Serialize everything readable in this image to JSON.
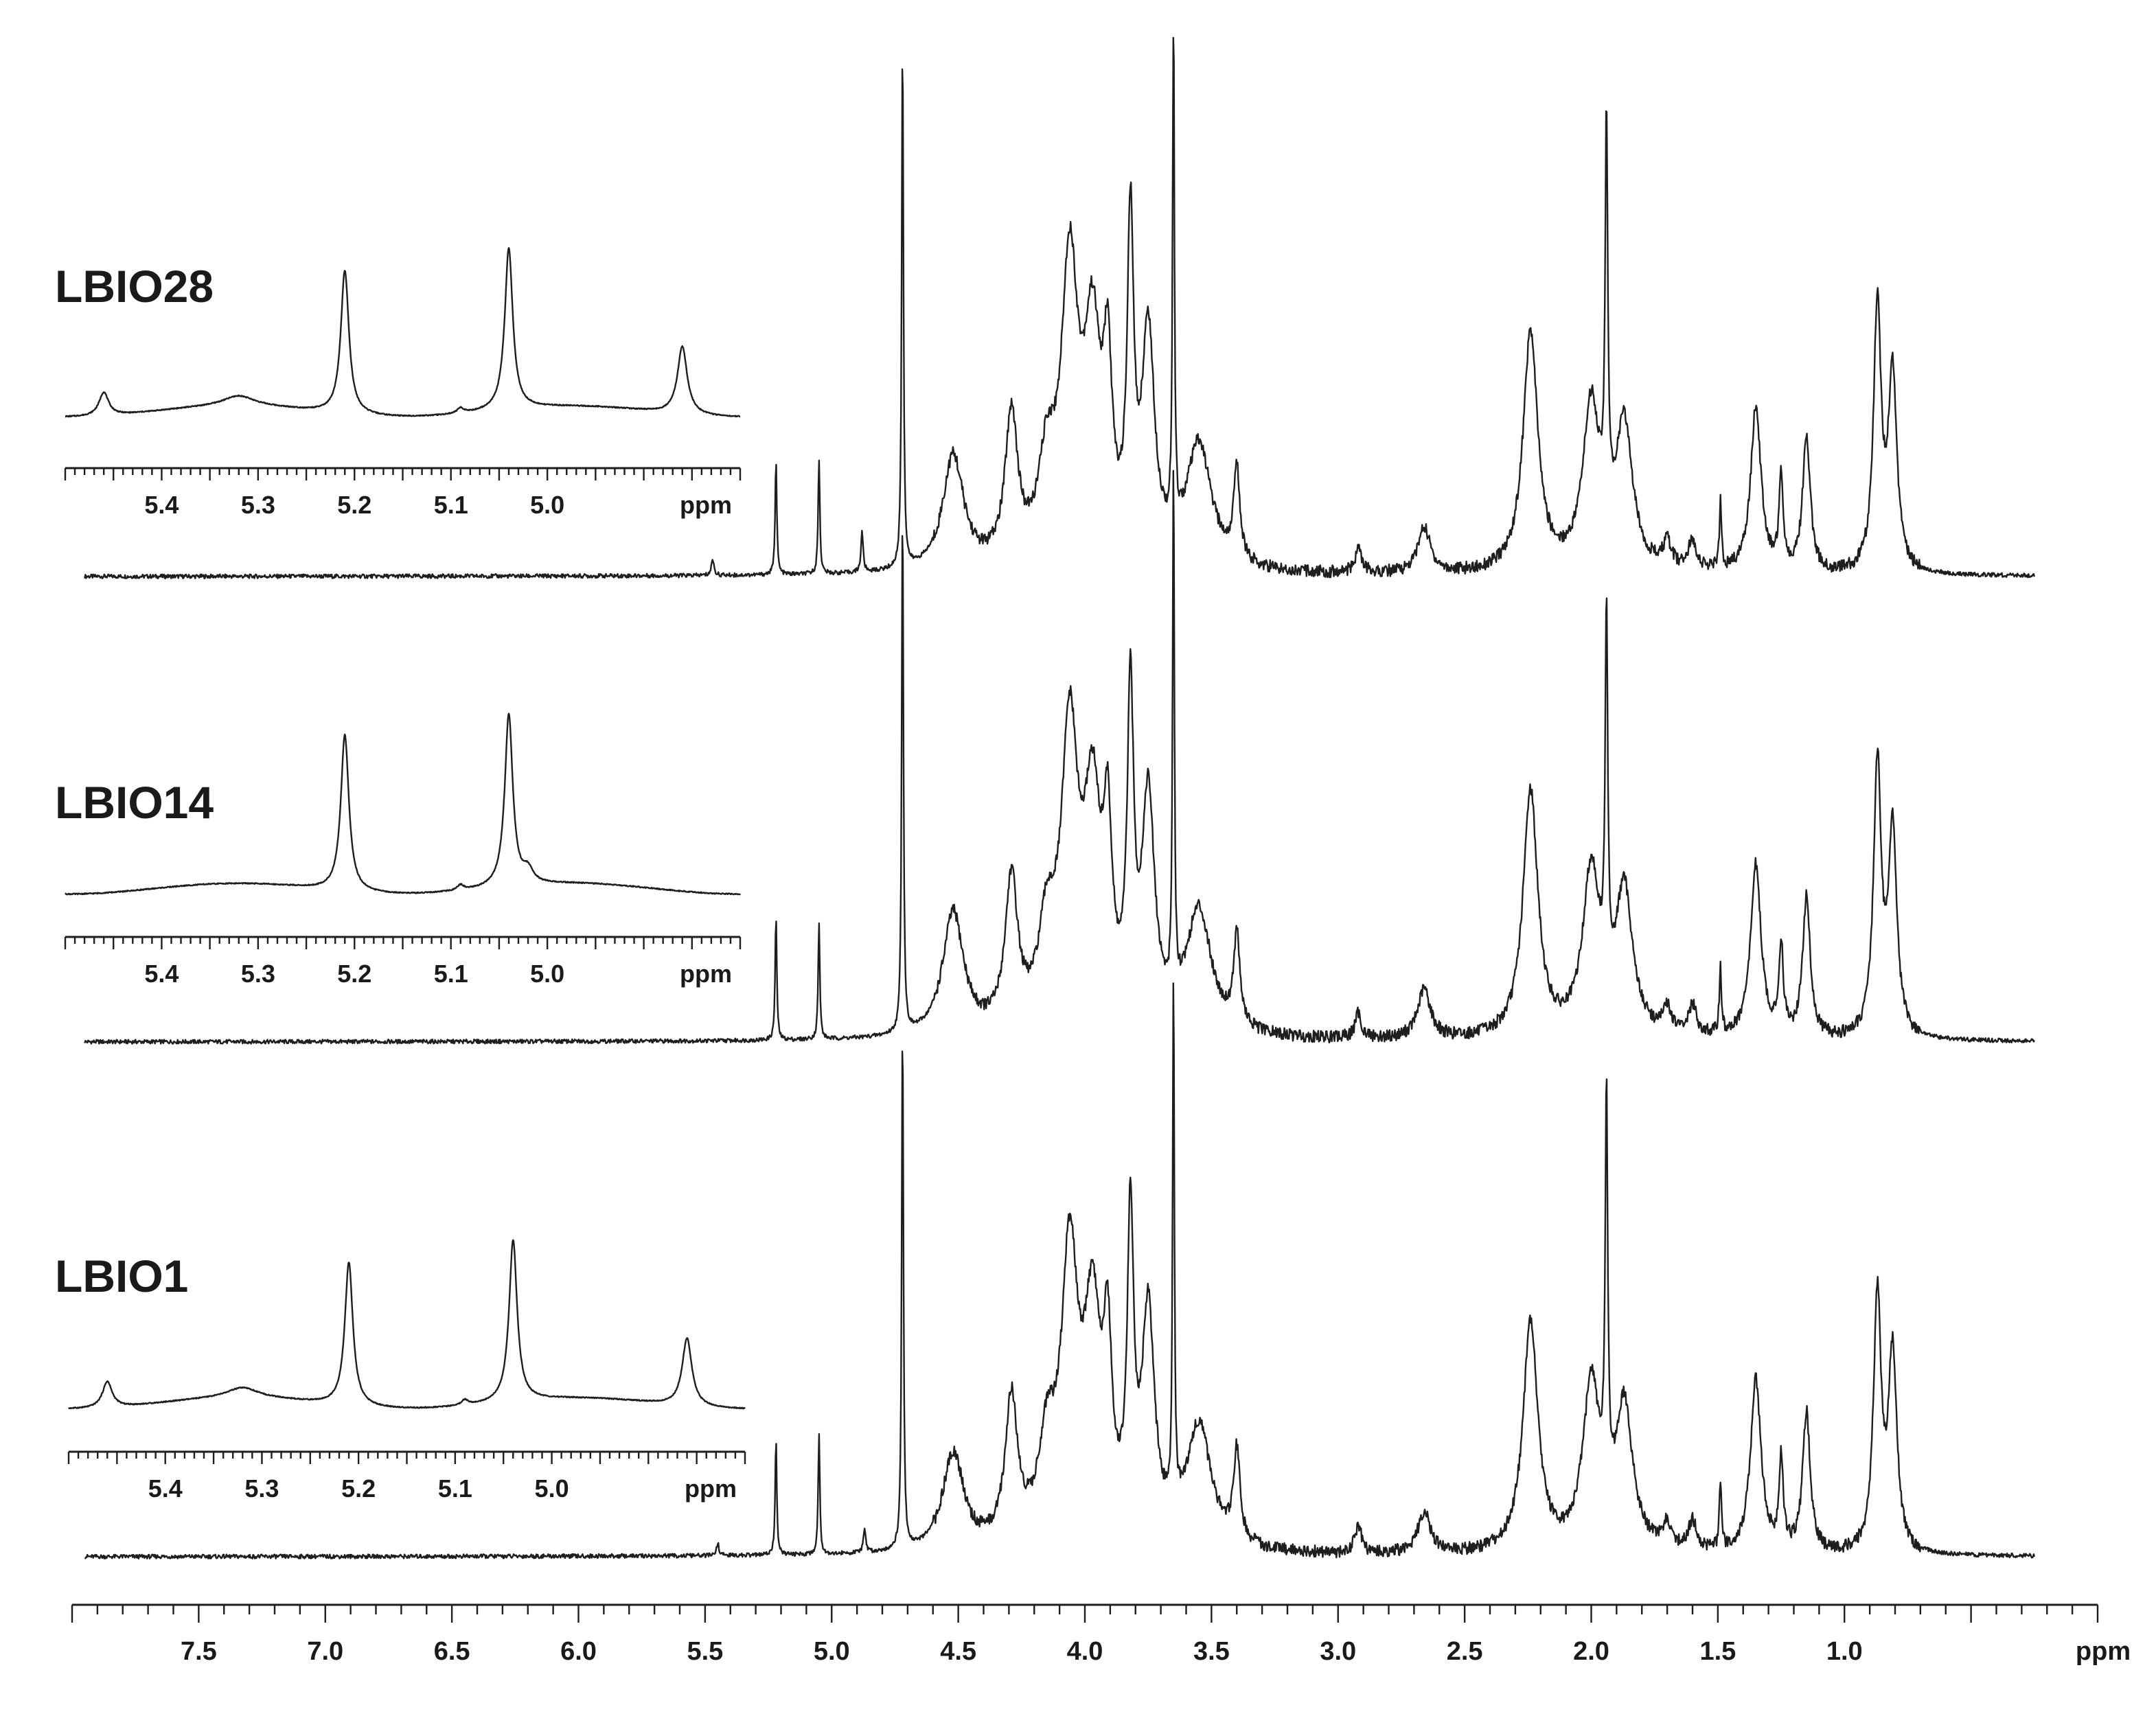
{
  "chart_data": [
    {
      "type": "line",
      "title": "",
      "xlabel": "ppm",
      "ylabel": "",
      "xlim": [
        8.0,
        0.0
      ],
      "x_reversed": true,
      "grid": false,
      "legend": "none",
      "x_ticks": [
        "7.5",
        "7.0",
        "6.5",
        "6.0",
        "5.5",
        "5.0",
        "4.5",
        "4.0",
        "3.5",
        "3.0",
        "2.5",
        "2.0",
        "1.5",
        "1.0"
      ],
      "baseline_ppm_range": [
        7.95,
        0.25
      ],
      "series": [
        {
          "name": "LBIO28",
          "peaks": [
            {
              "ppm": 5.47,
              "h": 0.04,
              "w": 0.006
            },
            {
              "ppm": 5.22,
              "h": 0.28,
              "w": 0.004
            },
            {
              "ppm": 5.05,
              "h": 0.28,
              "w": 0.004
            },
            {
              "ppm": 4.88,
              "h": 0.1,
              "w": 0.005
            },
            {
              "ppm": 4.72,
              "h": 1.3,
              "w": 0.004
            },
            {
              "ppm": 4.52,
              "h": 0.28,
              "w": 0.05
            },
            {
              "ppm": 4.29,
              "h": 0.36,
              "w": 0.03
            },
            {
              "ppm": 4.15,
              "h": 0.22,
              "w": 0.04
            },
            {
              "ppm": 4.06,
              "h": 0.7,
              "w": 0.04
            },
            {
              "ppm": 3.97,
              "h": 0.52,
              "w": 0.04
            },
            {
              "ppm": 3.91,
              "h": 0.4,
              "w": 0.02
            },
            {
              "ppm": 3.82,
              "h": 0.78,
              "w": 0.015
            },
            {
              "ppm": 3.75,
              "h": 0.55,
              "w": 0.03
            },
            {
              "ppm": 3.65,
              "h": 1.3,
              "w": 0.004
            },
            {
              "ppm": 3.55,
              "h": 0.3,
              "w": 0.06
            },
            {
              "ppm": 3.4,
              "h": 0.22,
              "w": 0.015
            },
            {
              "ppm": 2.92,
              "h": 0.06,
              "w": 0.015
            },
            {
              "ppm": 2.66,
              "h": 0.11,
              "w": 0.03
            },
            {
              "ppm": 2.24,
              "h": 0.58,
              "w": 0.035
            },
            {
              "ppm": 2.0,
              "h": 0.4,
              "w": 0.04
            },
            {
              "ppm": 1.94,
              "h": 0.95,
              "w": 0.006
            },
            {
              "ppm": 1.87,
              "h": 0.35,
              "w": 0.04
            },
            {
              "ppm": 1.7,
              "h": 0.06,
              "w": 0.02
            },
            {
              "ppm": 1.6,
              "h": 0.07,
              "w": 0.02
            },
            {
              "ppm": 1.49,
              "h": 0.16,
              "w": 0.005
            },
            {
              "ppm": 1.35,
              "h": 0.4,
              "w": 0.025
            },
            {
              "ppm": 1.25,
              "h": 0.22,
              "w": 0.01
            },
            {
              "ppm": 1.15,
              "h": 0.33,
              "w": 0.018
            },
            {
              "ppm": 0.87,
              "h": 0.64,
              "w": 0.018
            },
            {
              "ppm": 0.81,
              "h": 0.48,
              "w": 0.02
            }
          ],
          "inset": {
            "xlabel": "ppm",
            "xlim": [
              5.5,
              4.8
            ],
            "x_ticks": [
              "5.4",
              "5.3",
              "5.2",
              "5.1",
              "5.0"
            ],
            "peaks": [
              {
                "ppm": 5.46,
                "h": 0.09,
                "w": 0.006
              },
              {
                "ppm": 5.32,
                "h": 0.04,
                "w": 0.02
              },
              {
                "ppm": 5.21,
                "h": 0.55,
                "w": 0.005
              },
              {
                "ppm": 5.09,
                "h": 0.02,
                "w": 0.004
              },
              {
                "ppm": 5.04,
                "h": 0.62,
                "w": 0.005
              },
              {
                "ppm": 4.86,
                "h": 0.26,
                "w": 0.006
              }
            ]
          }
        },
        {
          "name": "LBIO14",
          "peaks": [
            {
              "ppm": 5.22,
              "h": 0.3,
              "w": 0.004
            },
            {
              "ppm": 5.05,
              "h": 0.28,
              "w": 0.004
            },
            {
              "ppm": 4.72,
              "h": 1.3,
              "w": 0.004
            },
            {
              "ppm": 4.52,
              "h": 0.3,
              "w": 0.05
            },
            {
              "ppm": 4.29,
              "h": 0.36,
              "w": 0.03
            },
            {
              "ppm": 4.15,
              "h": 0.22,
              "w": 0.04
            },
            {
              "ppm": 4.06,
              "h": 0.7,
              "w": 0.04
            },
            {
              "ppm": 3.97,
              "h": 0.52,
              "w": 0.04
            },
            {
              "ppm": 3.91,
              "h": 0.4,
              "w": 0.02
            },
            {
              "ppm": 3.82,
              "h": 0.76,
              "w": 0.015
            },
            {
              "ppm": 3.75,
              "h": 0.55,
              "w": 0.03
            },
            {
              "ppm": 3.65,
              "h": 1.3,
              "w": 0.004
            },
            {
              "ppm": 3.55,
              "h": 0.3,
              "w": 0.06
            },
            {
              "ppm": 3.4,
              "h": 0.22,
              "w": 0.015
            },
            {
              "ppm": 2.92,
              "h": 0.06,
              "w": 0.015
            },
            {
              "ppm": 2.66,
              "h": 0.12,
              "w": 0.03
            },
            {
              "ppm": 2.24,
              "h": 0.6,
              "w": 0.035
            },
            {
              "ppm": 2.0,
              "h": 0.4,
              "w": 0.04
            },
            {
              "ppm": 1.94,
              "h": 0.88,
              "w": 0.006
            },
            {
              "ppm": 1.87,
              "h": 0.35,
              "w": 0.04
            },
            {
              "ppm": 1.7,
              "h": 0.06,
              "w": 0.02
            },
            {
              "ppm": 1.6,
              "h": 0.07,
              "w": 0.02
            },
            {
              "ppm": 1.49,
              "h": 0.16,
              "w": 0.005
            },
            {
              "ppm": 1.35,
              "h": 0.42,
              "w": 0.025
            },
            {
              "ppm": 1.25,
              "h": 0.22,
              "w": 0.01
            },
            {
              "ppm": 1.15,
              "h": 0.34,
              "w": 0.018
            },
            {
              "ppm": 0.87,
              "h": 0.66,
              "w": 0.018
            },
            {
              "ppm": 0.81,
              "h": 0.5,
              "w": 0.02
            }
          ],
          "inset": {
            "xlabel": "ppm",
            "xlim": [
              5.5,
              4.8
            ],
            "x_ticks": [
              "5.4",
              "5.3",
              "5.2",
              "5.1",
              "5.0"
            ],
            "peaks": [
              {
                "ppm": 5.21,
                "h": 0.6,
                "w": 0.005
              },
              {
                "ppm": 5.09,
                "h": 0.02,
                "w": 0.004
              },
              {
                "ppm": 5.04,
                "h": 0.66,
                "w": 0.005
              },
              {
                "ppm": 5.02,
                "h": 0.05,
                "w": 0.006
              }
            ]
          }
        },
        {
          "name": "LBIO1",
          "peaks": [
            {
              "ppm": 5.45,
              "h": 0.03,
              "w": 0.006
            },
            {
              "ppm": 5.22,
              "h": 0.28,
              "w": 0.004
            },
            {
              "ppm": 5.05,
              "h": 0.29,
              "w": 0.004
            },
            {
              "ppm": 4.87,
              "h": 0.06,
              "w": 0.005
            },
            {
              "ppm": 4.72,
              "h": 1.3,
              "w": 0.004
            },
            {
              "ppm": 4.52,
              "h": 0.24,
              "w": 0.05
            },
            {
              "ppm": 4.29,
              "h": 0.35,
              "w": 0.03
            },
            {
              "ppm": 4.15,
              "h": 0.22,
              "w": 0.04
            },
            {
              "ppm": 4.06,
              "h": 0.68,
              "w": 0.04
            },
            {
              "ppm": 3.97,
              "h": 0.52,
              "w": 0.04
            },
            {
              "ppm": 3.91,
              "h": 0.4,
              "w": 0.02
            },
            {
              "ppm": 3.82,
              "h": 0.74,
              "w": 0.015
            },
            {
              "ppm": 3.75,
              "h": 0.55,
              "w": 0.03
            },
            {
              "ppm": 3.65,
              "h": 1.3,
              "w": 0.004
            },
            {
              "ppm": 3.55,
              "h": 0.3,
              "w": 0.06
            },
            {
              "ppm": 3.4,
              "h": 0.22,
              "w": 0.015
            },
            {
              "ppm": 2.92,
              "h": 0.07,
              "w": 0.015
            },
            {
              "ppm": 2.66,
              "h": 0.1,
              "w": 0.03
            },
            {
              "ppm": 2.24,
              "h": 0.56,
              "w": 0.035
            },
            {
              "ppm": 2.0,
              "h": 0.4,
              "w": 0.04
            },
            {
              "ppm": 1.94,
              "h": 0.96,
              "w": 0.006
            },
            {
              "ppm": 1.87,
              "h": 0.35,
              "w": 0.04
            },
            {
              "ppm": 1.7,
              "h": 0.06,
              "w": 0.02
            },
            {
              "ppm": 1.6,
              "h": 0.07,
              "w": 0.02
            },
            {
              "ppm": 1.49,
              "h": 0.16,
              "w": 0.005
            },
            {
              "ppm": 1.35,
              "h": 0.42,
              "w": 0.025
            },
            {
              "ppm": 1.25,
              "h": 0.22,
              "w": 0.01
            },
            {
              "ppm": 1.15,
              "h": 0.34,
              "w": 0.018
            },
            {
              "ppm": 0.87,
              "h": 0.62,
              "w": 0.018
            },
            {
              "ppm": 0.81,
              "h": 0.48,
              "w": 0.02
            }
          ],
          "inset": {
            "xlabel": "ppm",
            "xlim": [
              5.5,
              4.8
            ],
            "x_ticks": [
              "5.4",
              "5.3",
              "5.2",
              "5.1",
              "5.0"
            ],
            "peaks": [
              {
                "ppm": 5.46,
                "h": 0.1,
                "w": 0.006
              },
              {
                "ppm": 5.32,
                "h": 0.04,
                "w": 0.02
              },
              {
                "ppm": 5.21,
                "h": 0.55,
                "w": 0.005
              },
              {
                "ppm": 5.09,
                "h": 0.02,
                "w": 0.004
              },
              {
                "ppm": 5.04,
                "h": 0.62,
                "w": 0.005
              },
              {
                "ppm": 4.86,
                "h": 0.26,
                "w": 0.006
              }
            ]
          }
        }
      ]
    }
  ]
}
